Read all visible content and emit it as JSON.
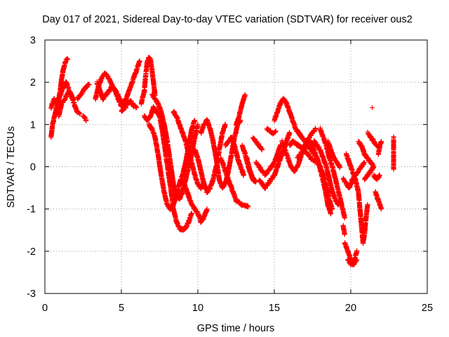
{
  "chart_data": {
    "type": "scatter",
    "title": "Day 017 of 2021, Sidereal Day-to-day VTEC variation (SDTVAR) for receiver ous2",
    "xlabel": "GPS time / hours",
    "ylabel": "SDTVAR / TECUs",
    "xlim": [
      0,
      25
    ],
    "ylim": [
      -3,
      3
    ],
    "xticks": [
      0,
      5,
      10,
      15,
      20,
      25
    ],
    "yticks": [
      -3,
      -2,
      -1,
      0,
      1,
      2,
      3
    ],
    "grid": true,
    "marker": "+",
    "marker_color": "#ff0000",
    "tracks": [
      [
        [
          0.4,
          0.7
        ],
        [
          0.5,
          1.0
        ],
        [
          0.7,
          1.3
        ],
        [
          0.9,
          1.6
        ],
        [
          1.0,
          1.8
        ],
        [
          1.1,
          2.1
        ],
        [
          1.2,
          2.3
        ],
        [
          1.35,
          2.5
        ],
        [
          1.5,
          2.55
        ]
      ],
      [
        [
          0.4,
          1.4
        ],
        [
          0.6,
          1.6
        ],
        [
          0.8,
          1.5
        ],
        [
          1.0,
          1.7
        ],
        [
          1.2,
          1.9
        ],
        [
          1.4,
          2.0
        ],
        [
          1.6,
          1.8
        ],
        [
          1.8,
          1.65
        ]
      ],
      [
        [
          0.9,
          1.2
        ],
        [
          1.1,
          1.5
        ],
        [
          1.3,
          1.6
        ],
        [
          1.5,
          1.75
        ],
        [
          1.7,
          1.7
        ],
        [
          1.9,
          1.5
        ],
        [
          2.1,
          1.3
        ],
        [
          2.3,
          1.25
        ]
      ],
      [
        [
          2.1,
          1.6
        ],
        [
          2.3,
          1.7
        ],
        [
          2.5,
          1.8
        ],
        [
          2.7,
          1.9
        ],
        [
          2.9,
          1.95
        ]
      ],
      [
        [
          2.5,
          1.2
        ],
        [
          2.7,
          1.1
        ]
      ],
      [
        [
          3.3,
          1.6
        ],
        [
          3.5,
          1.9
        ],
        [
          3.7,
          2.1
        ],
        [
          3.9,
          2.2
        ],
        [
          4.1,
          2.15
        ],
        [
          4.3,
          2.0
        ],
        [
          4.5,
          1.85
        ],
        [
          4.7,
          1.75
        ],
        [
          4.9,
          1.6
        ],
        [
          5.1,
          1.5
        ],
        [
          5.3,
          1.4
        ]
      ],
      [
        [
          3.4,
          2.0
        ],
        [
          3.6,
          1.8
        ],
        [
          3.8,
          1.6
        ],
        [
          4.0,
          1.7
        ],
        [
          4.2,
          1.8
        ],
        [
          4.4,
          1.9
        ],
        [
          4.6,
          1.8
        ],
        [
          4.8,
          1.6
        ],
        [
          5.0,
          1.45
        ],
        [
          5.2,
          1.5
        ],
        [
          5.4,
          1.7
        ],
        [
          5.6,
          1.9
        ],
        [
          5.8,
          2.1
        ],
        [
          6.0,
          2.3
        ],
        [
          6.2,
          2.5
        ]
      ],
      [
        [
          5.0,
          1.3
        ],
        [
          5.2,
          1.4
        ],
        [
          5.4,
          1.5
        ],
        [
          5.6,
          1.55
        ],
        [
          5.8,
          1.45
        ],
        [
          6.0,
          1.4
        ]
      ],
      [
        [
          6.3,
          1.5
        ],
        [
          6.5,
          1.8
        ],
        [
          6.6,
          2.2
        ],
        [
          6.7,
          2.5
        ],
        [
          6.8,
          2.6
        ],
        [
          6.9,
          2.55
        ],
        [
          7.0,
          2.3
        ],
        [
          7.1,
          2.0
        ],
        [
          7.2,
          1.7
        ]
      ],
      [
        [
          6.5,
          1.2
        ],
        [
          6.7,
          1.1
        ],
        [
          6.9,
          1.2
        ],
        [
          7.1,
          1.4
        ],
        [
          7.3,
          1.3
        ],
        [
          7.5,
          1.2
        ],
        [
          7.7,
          0.8
        ],
        [
          7.9,
          0.3
        ],
        [
          8.1,
          -0.2
        ],
        [
          8.3,
          -0.7
        ],
        [
          8.4,
          -1.0
        ],
        [
          8.6,
          -1.3
        ],
        [
          8.8,
          -1.45
        ],
        [
          9.0,
          -1.5
        ],
        [
          9.2,
          -1.45
        ],
        [
          9.4,
          -1.3
        ],
        [
          9.6,
          -1.1
        ]
      ],
      [
        [
          7.0,
          1.7
        ],
        [
          7.2,
          1.6
        ],
        [
          7.4,
          1.5
        ],
        [
          7.6,
          1.3
        ],
        [
          7.8,
          1.0
        ],
        [
          8.0,
          0.6
        ],
        [
          8.2,
          0.1
        ],
        [
          8.4,
          -0.4
        ],
        [
          8.6,
          -0.7
        ],
        [
          8.8,
          -0.75
        ],
        [
          9.0,
          -0.6
        ],
        [
          9.2,
          -0.3
        ],
        [
          9.4,
          0.0
        ],
        [
          9.6,
          0.3
        ],
        [
          9.8,
          0.7
        ],
        [
          10.0,
          1.0
        ]
      ],
      [
        [
          6.8,
          1.0
        ],
        [
          7.0,
          0.9
        ],
        [
          7.2,
          0.7
        ],
        [
          7.4,
          0.3
        ],
        [
          7.6,
          -0.2
        ],
        [
          7.8,
          -0.6
        ],
        [
          8.0,
          -0.9
        ],
        [
          8.2,
          -1.0
        ],
        [
          8.4,
          -0.9
        ],
        [
          8.6,
          -0.7
        ],
        [
          8.8,
          -0.4
        ],
        [
          9.0,
          -0.2
        ],
        [
          9.2,
          0.1
        ],
        [
          9.4,
          0.5
        ],
        [
          9.6,
          0.9
        ],
        [
          9.8,
          1.1
        ]
      ],
      [
        [
          8.4,
          1.3
        ],
        [
          8.6,
          1.2
        ],
        [
          8.8,
          1.0
        ],
        [
          9.0,
          0.8
        ],
        [
          9.2,
          0.6
        ],
        [
          9.4,
          0.3
        ],
        [
          9.6,
          0.1
        ],
        [
          9.8,
          -0.2
        ],
        [
          10.0,
          -0.4
        ],
        [
          10.2,
          -0.5
        ],
        [
          10.4,
          -0.4
        ]
      ],
      [
        [
          9.0,
          -0.3
        ],
        [
          9.2,
          -0.5
        ],
        [
          9.4,
          -0.7
        ],
        [
          9.6,
          -0.9
        ],
        [
          9.8,
          -1.0
        ],
        [
          10.0,
          -1.1
        ],
        [
          10.2,
          -1.3
        ],
        [
          10.4,
          -1.2
        ],
        [
          10.6,
          -1.0
        ]
      ],
      [
        [
          9.8,
          0.4
        ],
        [
          10.0,
          0.2
        ],
        [
          10.2,
          -0.1
        ],
        [
          10.4,
          -0.4
        ],
        [
          10.6,
          -0.6
        ],
        [
          10.8,
          -0.5
        ],
        [
          11.0,
          -0.3
        ],
        [
          11.2,
          0.0
        ],
        [
          11.4,
          0.4
        ],
        [
          11.6,
          0.8
        ],
        [
          11.8,
          1.0
        ]
      ],
      [
        [
          10.2,
          0.8
        ],
        [
          10.4,
          1.0
        ],
        [
          10.6,
          1.1
        ],
        [
          10.8,
          0.9
        ],
        [
          11.0,
          0.6
        ],
        [
          11.2,
          0.2
        ],
        [
          11.4,
          -0.3
        ],
        [
          11.6,
          -0.5
        ],
        [
          11.8,
          -0.4
        ],
        [
          12.0,
          -0.1
        ],
        [
          12.2,
          0.3
        ],
        [
          12.4,
          0.7
        ],
        [
          12.6,
          1.0
        ],
        [
          12.8,
          1.1
        ]
      ],
      [
        [
          11.5,
          0.2
        ],
        [
          11.7,
          0.0
        ],
        [
          11.9,
          -0.2
        ],
        [
          12.1,
          -0.4
        ],
        [
          12.3,
          -0.6
        ],
        [
          12.5,
          -0.8
        ],
        [
          12.7,
          -0.85
        ],
        [
          12.9,
          -0.9
        ],
        [
          13.1,
          -0.9
        ],
        [
          13.3,
          -0.95
        ]
      ],
      [
        [
          11.8,
          0.5
        ],
        [
          12.0,
          0.6
        ],
        [
          12.2,
          0.7
        ],
        [
          12.4,
          0.5
        ],
        [
          12.6,
          0.2
        ],
        [
          12.8,
          0.0
        ],
        [
          13.0,
          -0.2
        ]
      ],
      [
        [
          12.5,
          1.0
        ],
        [
          12.7,
          1.2
        ],
        [
          12.9,
          1.5
        ],
        [
          13.1,
          1.7
        ]
      ],
      [
        [
          12.9,
          0.5
        ],
        [
          13.1,
          0.3
        ],
        [
          13.3,
          0.0
        ],
        [
          13.5,
          -0.2
        ],
        [
          13.7,
          -0.3
        ]
      ],
      [
        [
          13.6,
          0.7
        ],
        [
          13.8,
          0.6
        ],
        [
          14.0,
          0.5
        ],
        [
          14.2,
          0.4
        ]
      ],
      [
        [
          13.2,
          0.2
        ],
        [
          13.4,
          -0.1
        ],
        [
          13.6,
          -0.3
        ],
        [
          13.8,
          -0.35
        ]
      ],
      [
        [
          13.8,
          0.1
        ],
        [
          14.0,
          0.0
        ],
        [
          14.2,
          -0.1
        ],
        [
          14.4,
          -0.2
        ],
        [
          14.6,
          -0.1
        ],
        [
          14.8,
          0.0
        ],
        [
          15.0,
          0.1
        ],
        [
          15.2,
          0.3
        ],
        [
          15.4,
          0.5
        ]
      ],
      [
        [
          14.0,
          -0.3
        ],
        [
          14.2,
          -0.4
        ],
        [
          14.4,
          -0.5
        ],
        [
          14.6,
          -0.4
        ],
        [
          14.8,
          -0.3
        ],
        [
          15.0,
          -0.2
        ],
        [
          15.2,
          0.0
        ],
        [
          15.4,
          0.2
        ],
        [
          15.6,
          0.4
        ],
        [
          15.8,
          0.6
        ],
        [
          16.0,
          0.8
        ]
      ],
      [
        [
          14.5,
          0.9
        ],
        [
          14.7,
          0.85
        ],
        [
          14.9,
          0.8
        ],
        [
          15.1,
          0.85
        ]
      ],
      [
        [
          15.0,
          1.1
        ],
        [
          15.2,
          1.3
        ],
        [
          15.4,
          1.5
        ],
        [
          15.6,
          1.6
        ],
        [
          15.8,
          1.5
        ],
        [
          16.0,
          1.3
        ],
        [
          16.2,
          1.1
        ],
        [
          16.4,
          0.9
        ],
        [
          16.6,
          0.8
        ],
        [
          16.8,
          0.7
        ],
        [
          17.0,
          0.6
        ],
        [
          17.2,
          0.5
        ],
        [
          17.4,
          0.4
        ],
        [
          17.6,
          0.3
        ]
      ],
      [
        [
          15.5,
          0.6
        ],
        [
          15.7,
          0.4
        ],
        [
          15.9,
          0.2
        ],
        [
          16.1,
          0.0
        ],
        [
          16.3,
          -0.1
        ],
        [
          16.5,
          0.0
        ],
        [
          16.7,
          0.2
        ],
        [
          16.9,
          0.4
        ],
        [
          17.1,
          0.6
        ],
        [
          17.3,
          0.7
        ],
        [
          17.5,
          0.8
        ],
        [
          17.7,
          0.9
        ]
      ],
      [
        [
          16.0,
          0.5
        ],
        [
          16.2,
          0.6
        ],
        [
          16.4,
          0.55
        ],
        [
          16.6,
          0.5
        ],
        [
          16.8,
          0.45
        ],
        [
          17.0,
          0.35
        ],
        [
          17.2,
          0.3
        ],
        [
          17.4,
          0.2
        ],
        [
          17.6,
          0.15
        ],
        [
          17.8,
          0.1
        ],
        [
          18.0,
          0.0
        ],
        [
          18.2,
          -0.2
        ],
        [
          18.4,
          -0.5
        ],
        [
          18.6,
          -0.8
        ],
        [
          18.8,
          -1.0
        ]
      ],
      [
        [
          16.5,
          0.2
        ],
        [
          16.7,
          0.3
        ],
        [
          16.9,
          0.4
        ],
        [
          17.1,
          0.5
        ],
        [
          17.3,
          0.6
        ],
        [
          17.5,
          0.5
        ],
        [
          17.7,
          0.3
        ],
        [
          17.9,
          0.1
        ],
        [
          18.1,
          -0.2
        ],
        [
          18.3,
          -0.5
        ],
        [
          18.5,
          -0.9
        ],
        [
          18.7,
          -1.1
        ]
      ],
      [
        [
          17.6,
          0.6
        ],
        [
          17.8,
          0.5
        ],
        [
          18.0,
          0.4
        ],
        [
          18.2,
          0.2
        ],
        [
          18.4,
          0.0
        ],
        [
          18.6,
          -0.3
        ],
        [
          18.8,
          -0.6
        ],
        [
          19.0,
          -0.8
        ],
        [
          19.2,
          -0.9
        ]
      ],
      [
        [
          18.0,
          0.9
        ],
        [
          18.2,
          0.7
        ],
        [
          18.4,
          0.5
        ],
        [
          18.6,
          0.2
        ],
        [
          18.8,
          0.0
        ],
        [
          19.0,
          -0.3
        ],
        [
          19.2,
          -0.6
        ],
        [
          19.4,
          -0.9
        ],
        [
          19.6,
          -1.2
        ]
      ],
      [
        [
          18.5,
          0.6
        ],
        [
          18.7,
          0.4
        ],
        [
          18.9,
          0.2
        ],
        [
          19.1,
          0.1
        ],
        [
          19.3,
          0.0
        ]
      ],
      [
        [
          19.5,
          -1.4
        ],
        [
          19.6,
          -1.6
        ]
      ],
      [
        [
          19.5,
          -0.3
        ],
        [
          19.7,
          -0.4
        ],
        [
          19.9,
          -0.5
        ],
        [
          20.1,
          -0.3
        ],
        [
          20.3,
          -0.2
        ],
        [
          20.5,
          -0.1
        ],
        [
          20.7,
          0.0
        ],
        [
          20.9,
          0.1
        ]
      ],
      [
        [
          19.6,
          -1.8
        ],
        [
          19.8,
          -2.0
        ],
        [
          20.0,
          -2.2
        ],
        [
          20.1,
          -2.3
        ],
        [
          20.2,
          -2.25
        ],
        [
          20.4,
          -2.0
        ]
      ],
      [
        [
          19.8,
          -2.2
        ],
        [
          20.0,
          -2.3
        ],
        [
          20.2,
          -2.3
        ],
        [
          20.4,
          -2.2
        ]
      ],
      [
        [
          19.7,
          0.3
        ],
        [
          19.9,
          0.1
        ],
        [
          20.1,
          -0.1
        ],
        [
          20.3,
          -0.3
        ],
        [
          20.5,
          -0.6
        ],
        [
          20.6,
          -1.0
        ],
        [
          20.7,
          -1.4
        ],
        [
          20.8,
          -1.8
        ],
        [
          20.9,
          -1.6
        ],
        [
          21.0,
          -1.2
        ],
        [
          21.1,
          -0.9
        ]
      ],
      [
        [
          20.5,
          0.6
        ],
        [
          20.7,
          0.5
        ],
        [
          20.9,
          0.3
        ],
        [
          21.1,
          0.2
        ],
        [
          21.3,
          0.1
        ],
        [
          21.5,
          0.0
        ]
      ],
      [
        [
          20.9,
          -0.3
        ],
        [
          21.1,
          -0.2
        ],
        [
          21.3,
          -0.1
        ],
        [
          21.5,
          0.0
        ]
      ],
      [
        [
          21.1,
          0.8
        ],
        [
          21.3,
          0.7
        ],
        [
          21.5,
          0.6
        ],
        [
          21.7,
          0.5
        ]
      ],
      [
        [
          21.4,
          1.4
        ]
      ],
      [
        [
          21.5,
          -0.2
        ],
        [
          21.7,
          -0.3
        ],
        [
          21.9,
          -0.2
        ]
      ],
      [
        [
          21.6,
          -0.6
        ],
        [
          21.8,
          -0.8
        ],
        [
          21.9,
          -0.9
        ],
        [
          22.0,
          -1.0
        ]
      ],
      [
        [
          21.8,
          0.3
        ],
        [
          21.9,
          0.5
        ],
        [
          22.0,
          0.6
        ]
      ],
      [
        [
          22.8,
          0.7
        ],
        [
          22.8,
          0.6
        ],
        [
          22.8,
          0.15
        ],
        [
          22.8,
          -0.05
        ]
      ]
    ]
  }
}
